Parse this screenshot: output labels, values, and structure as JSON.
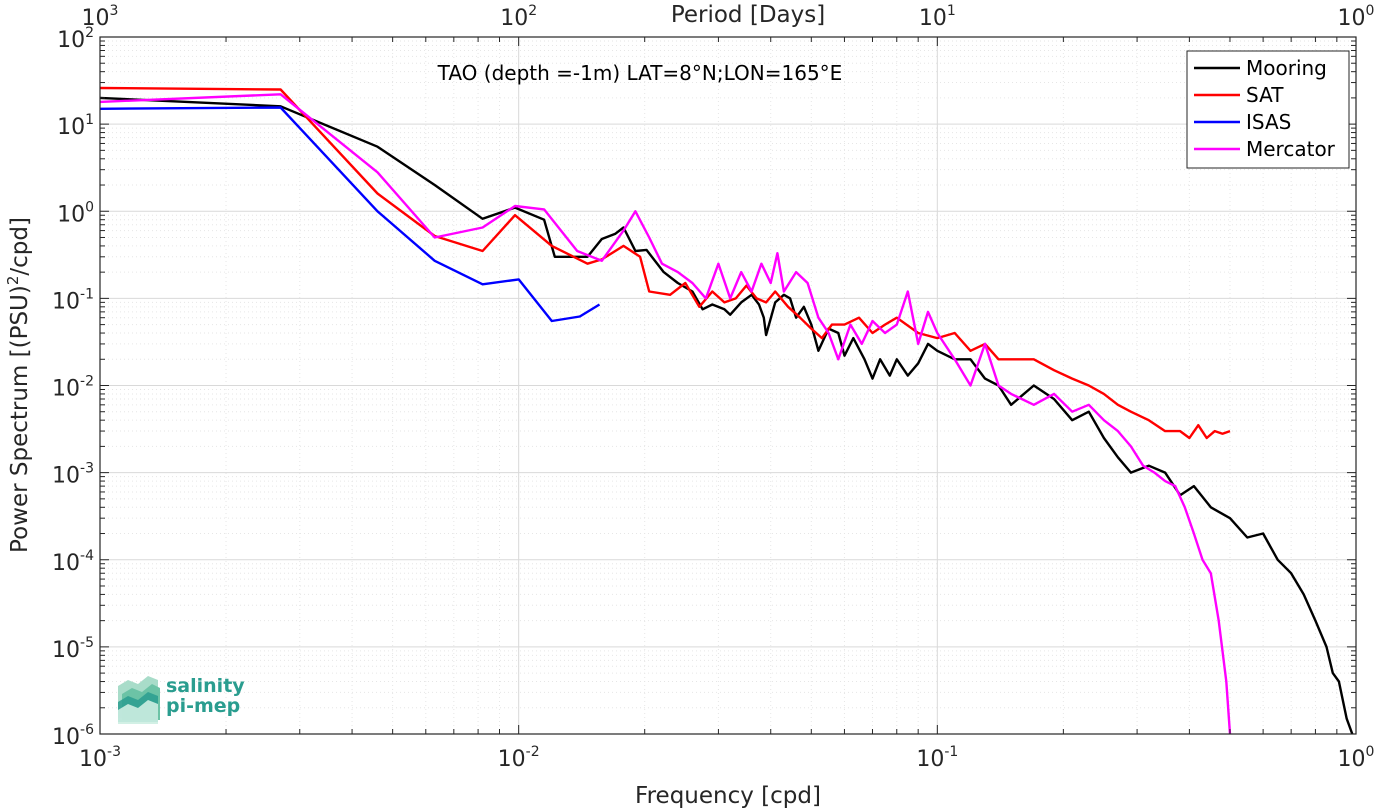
{
  "chart_data": {
    "type": "line",
    "title": "",
    "annotation": "TAO (depth =-1m) LAT=8°N;LON=165°E",
    "xlabel": "Frequency [cpd]",
    "ylabel": "Power Spectrum [(PSU)²/cpd]",
    "top_xlabel": "Period [Days]",
    "xscale": "log",
    "yscale": "log",
    "xlim": [
      0.001,
      1
    ],
    "ylim": [
      1e-06,
      100
    ],
    "grid": true,
    "legend_position": "top-right",
    "x_ticks": [
      {
        "value": 0.001,
        "base": "10",
        "exp": "-3"
      },
      {
        "value": 0.01,
        "base": "10",
        "exp": "-2"
      },
      {
        "value": 0.1,
        "base": "10",
        "exp": "-1"
      },
      {
        "value": 1,
        "base": "10",
        "exp": "0"
      }
    ],
    "y_ticks": [
      {
        "value": 1e-06,
        "base": "10",
        "exp": "-6"
      },
      {
        "value": 1e-05,
        "base": "10",
        "exp": "-5"
      },
      {
        "value": 0.0001,
        "base": "10",
        "exp": "-4"
      },
      {
        "value": 0.001,
        "base": "10",
        "exp": "-3"
      },
      {
        "value": 0.01,
        "base": "10",
        "exp": "-2"
      },
      {
        "value": 0.1,
        "base": "10",
        "exp": "-1"
      },
      {
        "value": 1,
        "base": "10",
        "exp": "0"
      },
      {
        "value": 10,
        "base": "10",
        "exp": "1"
      },
      {
        "value": 100,
        "base": "10",
        "exp": "2"
      }
    ],
    "top_ticks": [
      {
        "period": 1000,
        "base": "10",
        "exp": "3"
      },
      {
        "period": 100,
        "base": "10",
        "exp": "2"
      },
      {
        "period": 10,
        "base": "10",
        "exp": "1"
      },
      {
        "period": 1,
        "base": "10",
        "exp": "0"
      }
    ],
    "series": [
      {
        "name": "Mooring",
        "color": "#000000",
        "points": [
          [
            0.001,
            20
          ],
          [
            0.0027,
            16
          ],
          [
            0.0046,
            5.5
          ],
          [
            0.0063,
            2
          ],
          [
            0.0082,
            0.82
          ],
          [
            0.0098,
            1.1
          ],
          [
            0.0115,
            0.8
          ],
          [
            0.0122,
            0.3
          ],
          [
            0.0146,
            0.3
          ],
          [
            0.0158,
            0.48
          ],
          [
            0.017,
            0.55
          ],
          [
            0.0178,
            0.65
          ],
          [
            0.019,
            0.35
          ],
          [
            0.0202,
            0.36
          ],
          [
            0.0222,
            0.2
          ],
          [
            0.024,
            0.15
          ],
          [
            0.026,
            0.12
          ],
          [
            0.0275,
            0.075
          ],
          [
            0.029,
            0.085
          ],
          [
            0.031,
            0.075
          ],
          [
            0.032,
            0.065
          ],
          [
            0.034,
            0.09
          ],
          [
            0.036,
            0.11
          ],
          [
            0.0375,
            0.085
          ],
          [
            0.0385,
            0.06
          ],
          [
            0.039,
            0.038
          ],
          [
            0.041,
            0.09
          ],
          [
            0.043,
            0.11
          ],
          [
            0.0445,
            0.1
          ],
          [
            0.046,
            0.06
          ],
          [
            0.048,
            0.08
          ],
          [
            0.05,
            0.05
          ],
          [
            0.052,
            0.025
          ],
          [
            0.055,
            0.045
          ],
          [
            0.058,
            0.04
          ],
          [
            0.06,
            0.022
          ],
          [
            0.063,
            0.035
          ],
          [
            0.067,
            0.02
          ],
          [
            0.07,
            0.012
          ],
          [
            0.073,
            0.02
          ],
          [
            0.077,
            0.013
          ],
          [
            0.08,
            0.02
          ],
          [
            0.085,
            0.013
          ],
          [
            0.09,
            0.018
          ],
          [
            0.095,
            0.03
          ],
          [
            0.1,
            0.025
          ],
          [
            0.11,
            0.02
          ],
          [
            0.12,
            0.02
          ],
          [
            0.13,
            0.012
          ],
          [
            0.14,
            0.01
          ],
          [
            0.15,
            0.006
          ],
          [
            0.17,
            0.01
          ],
          [
            0.19,
            0.007
          ],
          [
            0.21,
            0.004
          ],
          [
            0.23,
            0.005
          ],
          [
            0.25,
            0.0025
          ],
          [
            0.27,
            0.0015
          ],
          [
            0.29,
            0.001
          ],
          [
            0.32,
            0.0012
          ],
          [
            0.35,
            0.001
          ],
          [
            0.38,
            0.00055
          ],
          [
            0.41,
            0.0007
          ],
          [
            0.45,
            0.0004
          ],
          [
            0.5,
            0.0003
          ],
          [
            0.55,
            0.00018
          ],
          [
            0.6,
            0.0002
          ],
          [
            0.65,
            0.0001
          ],
          [
            0.7,
            7e-05
          ],
          [
            0.75,
            4e-05
          ],
          [
            0.8,
            2e-05
          ],
          [
            0.85,
            1e-05
          ],
          [
            0.88,
            5e-06
          ],
          [
            0.91,
            4e-06
          ],
          [
            0.95,
            1.5e-06
          ],
          [
            0.98,
            1e-06
          ]
        ]
      },
      {
        "name": "SAT",
        "color": "#ff0000",
        "points": [
          [
            0.001,
            26
          ],
          [
            0.0027,
            25
          ],
          [
            0.0046,
            1.6
          ],
          [
            0.0063,
            0.52
          ],
          [
            0.0082,
            0.35
          ],
          [
            0.0098,
            0.9
          ],
          [
            0.012,
            0.4
          ],
          [
            0.0146,
            0.25
          ],
          [
            0.0158,
            0.28
          ],
          [
            0.0178,
            0.4
          ],
          [
            0.0195,
            0.3
          ],
          [
            0.0205,
            0.12
          ],
          [
            0.023,
            0.11
          ],
          [
            0.025,
            0.15
          ],
          [
            0.027,
            0.08
          ],
          [
            0.029,
            0.12
          ],
          [
            0.031,
            0.09
          ],
          [
            0.033,
            0.1
          ],
          [
            0.035,
            0.14
          ],
          [
            0.037,
            0.1
          ],
          [
            0.039,
            0.09
          ],
          [
            0.041,
            0.12
          ],
          [
            0.044,
            0.08
          ],
          [
            0.047,
            0.06
          ],
          [
            0.05,
            0.045
          ],
          [
            0.053,
            0.035
          ],
          [
            0.056,
            0.05
          ],
          [
            0.06,
            0.05
          ],
          [
            0.065,
            0.06
          ],
          [
            0.07,
            0.04
          ],
          [
            0.075,
            0.05
          ],
          [
            0.08,
            0.06
          ],
          [
            0.09,
            0.04
          ],
          [
            0.1,
            0.035
          ],
          [
            0.11,
            0.04
          ],
          [
            0.12,
            0.025
          ],
          [
            0.13,
            0.03
          ],
          [
            0.14,
            0.02
          ],
          [
            0.15,
            0.02
          ],
          [
            0.17,
            0.02
          ],
          [
            0.19,
            0.015
          ],
          [
            0.21,
            0.012
          ],
          [
            0.23,
            0.01
          ],
          [
            0.25,
            0.008
          ],
          [
            0.27,
            0.006
          ],
          [
            0.29,
            0.005
          ],
          [
            0.32,
            0.004
          ],
          [
            0.35,
            0.003
          ],
          [
            0.38,
            0.003
          ],
          [
            0.4,
            0.0025
          ],
          [
            0.42,
            0.0035
          ],
          [
            0.44,
            0.0025
          ],
          [
            0.46,
            0.003
          ],
          [
            0.48,
            0.0028
          ],
          [
            0.5,
            0.003
          ]
        ]
      },
      {
        "name": "ISAS",
        "color": "#0000ff",
        "points": [
          [
            0.001,
            15
          ],
          [
            0.0027,
            15.5
          ],
          [
            0.0046,
            1
          ],
          [
            0.0063,
            0.27
          ],
          [
            0.0082,
            0.145
          ],
          [
            0.01,
            0.165
          ],
          [
            0.012,
            0.055
          ],
          [
            0.014,
            0.062
          ],
          [
            0.0156,
            0.085
          ]
        ]
      },
      {
        "name": "Mercator",
        "color": "#ff00ff",
        "points": [
          [
            0.001,
            18
          ],
          [
            0.0027,
            22
          ],
          [
            0.0046,
            2.8
          ],
          [
            0.0063,
            0.5
          ],
          [
            0.0082,
            0.65
          ],
          [
            0.0098,
            1.15
          ],
          [
            0.0115,
            1.05
          ],
          [
            0.0138,
            0.35
          ],
          [
            0.0158,
            0.27
          ],
          [
            0.0178,
            0.6
          ],
          [
            0.019,
            1
          ],
          [
            0.0205,
            0.5
          ],
          [
            0.022,
            0.25
          ],
          [
            0.024,
            0.2
          ],
          [
            0.026,
            0.15
          ],
          [
            0.028,
            0.1
          ],
          [
            0.03,
            0.25
          ],
          [
            0.032,
            0.1
          ],
          [
            0.034,
            0.2
          ],
          [
            0.036,
            0.12
          ],
          [
            0.038,
            0.25
          ],
          [
            0.04,
            0.15
          ],
          [
            0.0415,
            0.33
          ],
          [
            0.043,
            0.12
          ],
          [
            0.046,
            0.2
          ],
          [
            0.049,
            0.15
          ],
          [
            0.052,
            0.06
          ],
          [
            0.055,
            0.04
          ],
          [
            0.058,
            0.02
          ],
          [
            0.062,
            0.05
          ],
          [
            0.066,
            0.03
          ],
          [
            0.07,
            0.055
          ],
          [
            0.075,
            0.04
          ],
          [
            0.08,
            0.05
          ],
          [
            0.085,
            0.12
          ],
          [
            0.09,
            0.03
          ],
          [
            0.095,
            0.07
          ],
          [
            0.1,
            0.04
          ],
          [
            0.11,
            0.02
          ],
          [
            0.12,
            0.01
          ],
          [
            0.13,
            0.03
          ],
          [
            0.14,
            0.01
          ],
          [
            0.15,
            0.008
          ],
          [
            0.17,
            0.006
          ],
          [
            0.19,
            0.008
          ],
          [
            0.21,
            0.005
          ],
          [
            0.23,
            0.006
          ],
          [
            0.25,
            0.004
          ],
          [
            0.27,
            0.003
          ],
          [
            0.29,
            0.002
          ],
          [
            0.31,
            0.0012
          ],
          [
            0.33,
            0.001
          ],
          [
            0.35,
            0.0008
          ],
          [
            0.37,
            0.0007
          ],
          [
            0.39,
            0.0004
          ],
          [
            0.41,
            0.0002
          ],
          [
            0.43,
            0.0001
          ],
          [
            0.45,
            7e-05
          ],
          [
            0.47,
            2e-05
          ],
          [
            0.49,
            4e-06
          ],
          [
            0.5,
            1e-06
          ]
        ]
      }
    ]
  },
  "logo": {
    "line1": "salinity",
    "line2": "pi-mep"
  }
}
